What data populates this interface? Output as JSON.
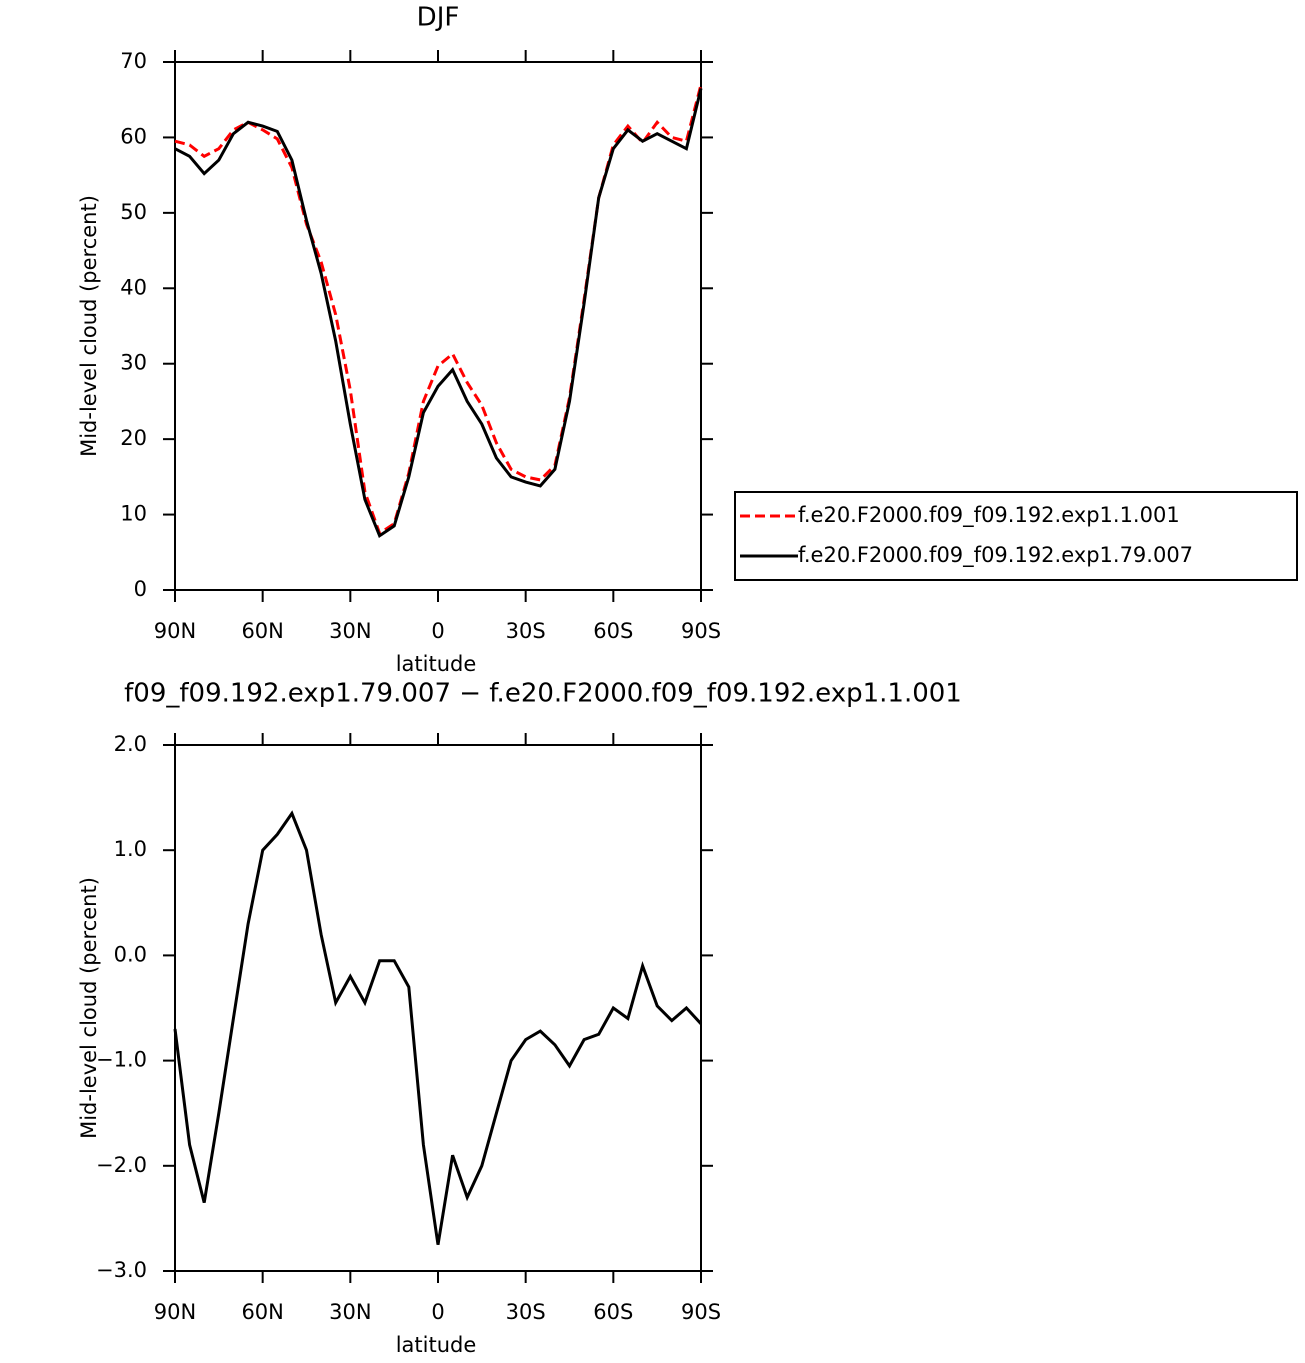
{
  "chart_data": [
    {
      "type": "line",
      "title": "DJF",
      "x_label": "latitude",
      "y_label": "Mid-level cloud (percent)",
      "x": [
        90,
        85,
        80,
        75,
        70,
        65,
        60,
        55,
        50,
        45,
        40,
        35,
        30,
        25,
        20,
        15,
        10,
        5,
        0,
        -5,
        -10,
        -15,
        -20,
        -25,
        -30,
        -35,
        -40,
        -45,
        -50,
        -55,
        -60,
        -65,
        -70,
        -75,
        -80,
        -85,
        -90
      ],
      "xlim": [
        90,
        -90
      ],
      "xticks": [
        {
          "value": 90,
          "label": "90N"
        },
        {
          "value": 60,
          "label": "60N"
        },
        {
          "value": 30,
          "label": "30N"
        },
        0,
        {
          "value": -30,
          "label": "30S"
        },
        {
          "value": -60,
          "label": "60S"
        },
        {
          "value": -90,
          "label": "90S"
        }
      ],
      "ylim": [
        0,
        70
      ],
      "yticks": [
        0,
        10,
        20,
        30,
        40,
        50,
        60,
        70
      ],
      "series": [
        {
          "name": "f.e20.F2000.f09_f09.192.exp1.1.001",
          "color": "#ff0000",
          "dash": true,
          "values": [
            59.5,
            59,
            57.5,
            58.5,
            61,
            62,
            61,
            59.8,
            56,
            48.5,
            43.5,
            36.5,
            26.5,
            13,
            7.5,
            8.8,
            15.5,
            25,
            29.7,
            31.3,
            27.5,
            24.5,
            19.5,
            16,
            15,
            14.6,
            16.5,
            25.5,
            38.5,
            52,
            59,
            61.5,
            59.3,
            62,
            60,
            59.5,
            67
          ]
        },
        {
          "name": "f.e20.F2000.f09_f09.192.exp1.79.007",
          "color": "#000000",
          "dash": false,
          "values": [
            58.5,
            57.5,
            55.2,
            57,
            60.5,
            62,
            61.5,
            60.8,
            57,
            49,
            42,
            33,
            22,
            12,
            7.2,
            8.5,
            15,
            23.5,
            27,
            29.2,
            25,
            22,
            17.5,
            15,
            14.3,
            13.8,
            16,
            25,
            38,
            52,
            58.5,
            61,
            59.5,
            60.5,
            59.5,
            58.5,
            66.5
          ]
        }
      ]
    },
    {
      "type": "line",
      "title": "f09_f09.192.exp1.79.007 − f.e20.F2000.f09_f09.192.exp1.1.001",
      "x_label": "latitude",
      "y_label": "Mid-level cloud (percent)",
      "x": [
        90,
        85,
        80,
        75,
        70,
        65,
        60,
        55,
        50,
        45,
        40,
        35,
        30,
        25,
        20,
        15,
        10,
        5,
        0,
        -5,
        -10,
        -15,
        -20,
        -25,
        -30,
        -35,
        -40,
        -45,
        -50,
        -55,
        -60,
        -65,
        -70,
        -75,
        -80,
        -85,
        -90
      ],
      "xlim": [
        90,
        -90
      ],
      "xticks": [
        {
          "value": 90,
          "label": "90N"
        },
        {
          "value": 60,
          "label": "60N"
        },
        {
          "value": 30,
          "label": "30N"
        },
        0,
        {
          "value": -30,
          "label": "30S"
        },
        {
          "value": -60,
          "label": "60S"
        },
        {
          "value": -90,
          "label": "90S"
        }
      ],
      "ylim": [
        -3,
        2
      ],
      "yticks": [
        {
          "value": -3,
          "label": "−3.0"
        },
        {
          "value": -2,
          "label": "−2.0"
        },
        {
          "value": -1,
          "label": "−1.0"
        },
        {
          "value": 0,
          "label": "0.0"
        },
        {
          "value": 1,
          "label": "1.0"
        },
        {
          "value": 2,
          "label": "2.0"
        }
      ],
      "series": [
        {
          "color": "#000000",
          "dash": false,
          "values": [
            -0.7,
            -1.8,
            -2.35,
            -1.5,
            -0.6,
            0.3,
            1.0,
            1.15,
            1.35,
            1.0,
            0.2,
            -0.45,
            -0.2,
            -0.45,
            -0.05,
            -0.05,
            -0.3,
            -1.8,
            -2.75,
            -1.9,
            -2.3,
            -2.0,
            -1.5,
            -1.0,
            -0.8,
            -0.72,
            -0.85,
            -1.05,
            -0.8,
            -0.75,
            -0.5,
            -0.6,
            -0.1,
            -0.48,
            -0.62,
            -0.5,
            -0.65
          ]
        }
      ]
    }
  ]
}
